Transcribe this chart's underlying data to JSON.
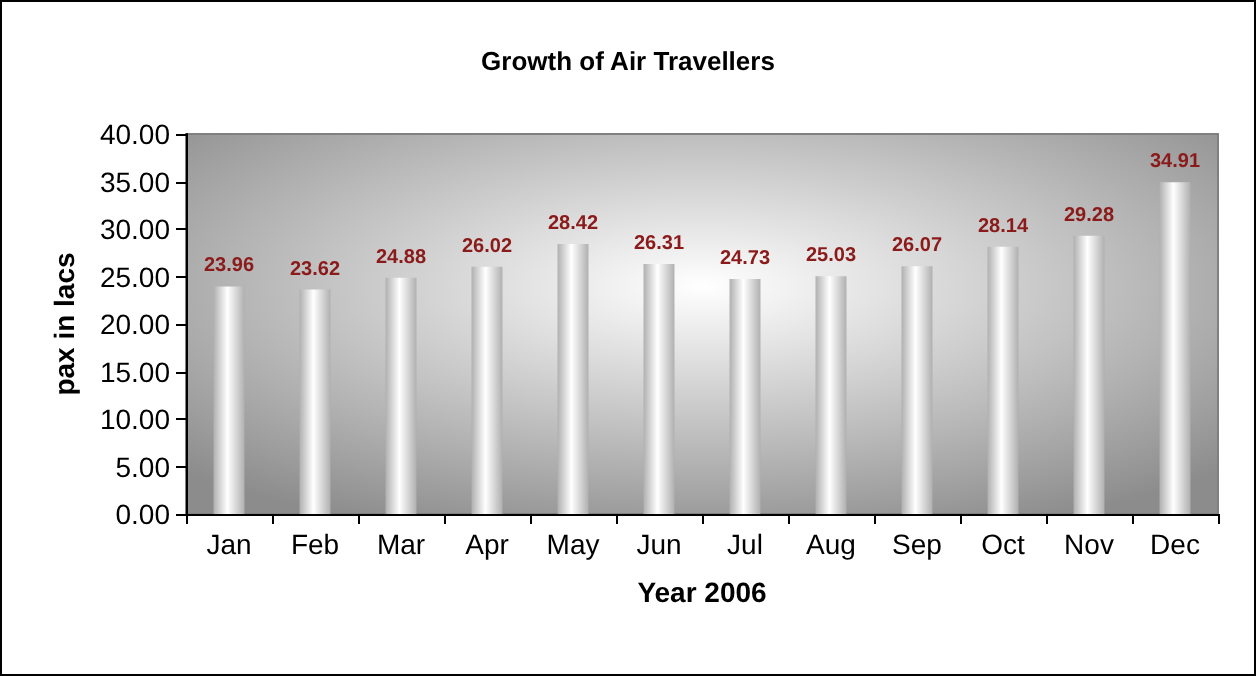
{
  "chart_data": {
    "type": "bar",
    "title": "Growth of Air Travellers",
    "xlabel": "Year 2006",
    "ylabel": "pax in lacs",
    "categories": [
      "Jan",
      "Feb",
      "Mar",
      "Apr",
      "May",
      "Jun",
      "Jul",
      "Aug",
      "Sep",
      "Oct",
      "Nov",
      "Dec"
    ],
    "values": [
      23.96,
      23.62,
      24.88,
      26.02,
      28.42,
      26.31,
      24.73,
      25.03,
      26.07,
      28.14,
      29.28,
      34.91
    ],
    "color": "#b0b0b0",
    "data_labels": true,
    "grid": false,
    "ylim": [
      0,
      40
    ],
    "yticks": [
      {
        "value": 0,
        "label": "0.00"
      },
      {
        "value": 5,
        "label": "5.00"
      },
      {
        "value": 10,
        "label": "10.00"
      },
      {
        "value": 15,
        "label": "15.00"
      },
      {
        "value": 20,
        "label": "20.00"
      },
      {
        "value": 25,
        "label": "25.00"
      },
      {
        "value": 30,
        "label": "30.00"
      },
      {
        "value": 35,
        "label": "35.00"
      },
      {
        "value": 40,
        "label": "40.00"
      }
    ]
  }
}
